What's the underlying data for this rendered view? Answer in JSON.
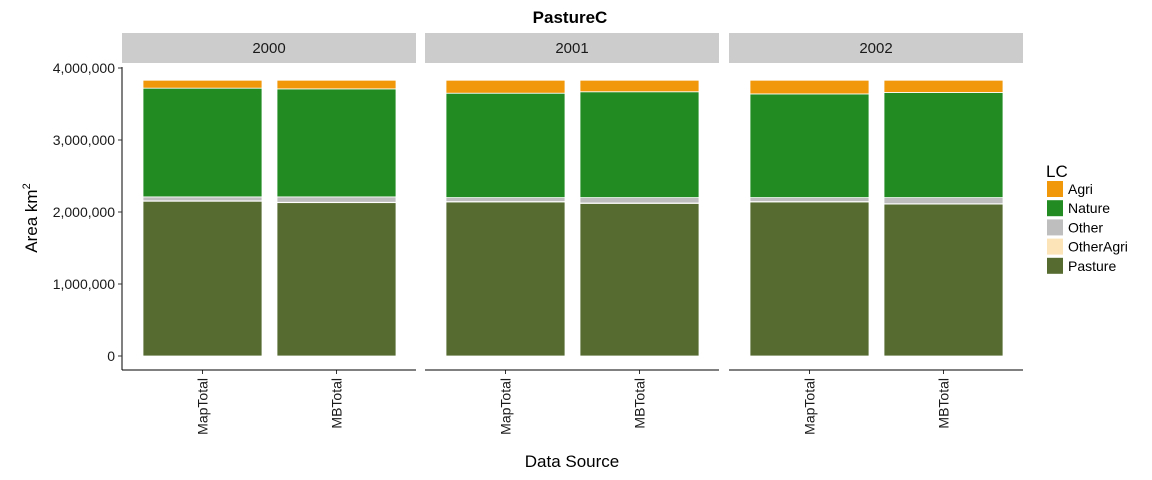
{
  "chart_data": {
    "type": "bar",
    "stacked": true,
    "title": "PastureC",
    "xlabel": "Data Source",
    "ylabel": "Area km",
    "ylabel_superscript": "2",
    "ylim": [
      0,
      4000000
    ],
    "yticks": [
      0,
      1000000,
      2000000,
      3000000,
      4000000
    ],
    "ytick_labels": [
      "0",
      "1,000,000",
      "2,000,000",
      "3,000,000",
      "4,000,000"
    ],
    "categories": [
      "MapTotal",
      "MBTotal"
    ],
    "stack_order": [
      "Pasture",
      "OtherAgri",
      "Other",
      "Nature",
      "Agri"
    ],
    "grid": false,
    "legend": {
      "title": "LC",
      "position": "right",
      "entries": [
        {
          "name": "Agri",
          "color": "#f0980a"
        },
        {
          "name": "Nature",
          "color": "#228b22"
        },
        {
          "name": "Other",
          "color": "#bebebe"
        },
        {
          "name": "OtherAgri",
          "color": "#fde4b8"
        },
        {
          "name": "Pasture",
          "color": "#556b2f"
        }
      ]
    },
    "facets": [
      {
        "label": "2000",
        "bars": [
          {
            "category": "MapTotal",
            "values": {
              "Pasture": 2150000,
              "OtherAgri": 5000,
              "Other": 55000,
              "Nature": 1510000,
              "Agri": 110000
            }
          },
          {
            "category": "MBTotal",
            "values": {
              "Pasture": 2130000,
              "OtherAgri": 5000,
              "Other": 75000,
              "Nature": 1500000,
              "Agri": 120000
            }
          }
        ]
      },
      {
        "label": "2001",
        "bars": [
          {
            "category": "MapTotal",
            "values": {
              "Pasture": 2140000,
              "OtherAgri": 5000,
              "Other": 55000,
              "Nature": 1450000,
              "Agri": 180000
            }
          },
          {
            "category": "MBTotal",
            "values": {
              "Pasture": 2120000,
              "OtherAgri": 5000,
              "Other": 75000,
              "Nature": 1470000,
              "Agri": 160000
            }
          }
        ]
      },
      {
        "label": "2002",
        "bars": [
          {
            "category": "MapTotal",
            "values": {
              "Pasture": 2140000,
              "OtherAgri": 5000,
              "Other": 55000,
              "Nature": 1440000,
              "Agri": 190000
            }
          },
          {
            "category": "MBTotal",
            "values": {
              "Pasture": 2110000,
              "OtherAgri": 5000,
              "Other": 85000,
              "Nature": 1460000,
              "Agri": 170000
            }
          }
        ]
      }
    ]
  }
}
